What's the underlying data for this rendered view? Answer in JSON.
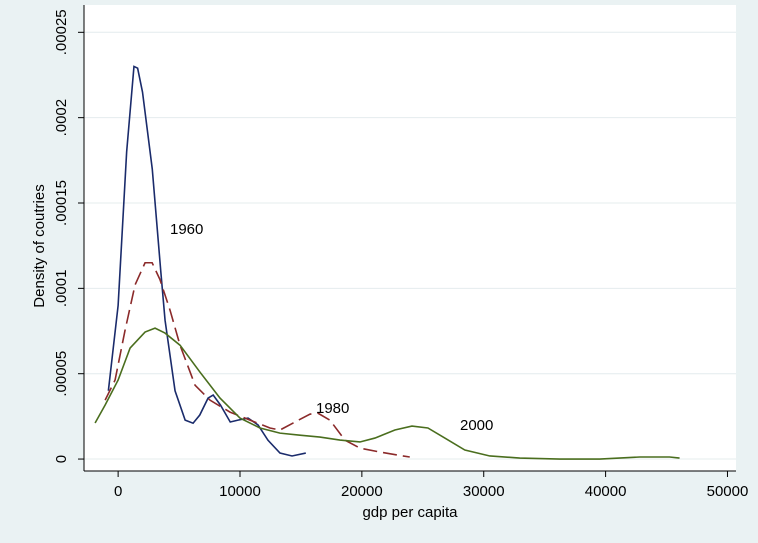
{
  "chart_data": {
    "type": "line",
    "x_label": "gdp per capita",
    "y_label": "Density of coutries",
    "xlim": [
      -2800,
      50700
    ],
    "ylim": [
      -7e-06,
      0.000266
    ],
    "xticks": [
      0,
      10000,
      20000,
      30000,
      40000,
      50000
    ],
    "yticks": [
      0,
      {
        "value": 5e-05,
        "label": ".00005"
      },
      {
        "value": 0.0001,
        "label": ".0001"
      },
      {
        "value": 0.00015,
        "label": ".00015"
      },
      {
        "value": 0.0002,
        "label": ".0002"
      },
      {
        "value": 0.00025,
        "label": ".00025"
      }
    ],
    "grid": true,
    "series": [
      {
        "name": "1960",
        "color": "#1a2b6b",
        "dash": "solid",
        "x": [
          -800,
          0,
          700,
          1300,
          1600,
          2000,
          2800,
          3500,
          3850,
          4670,
          5500,
          6150,
          6700,
          7380,
          7800,
          8400,
          9200,
          9840,
          10660,
          11480,
          12300,
          13280,
          14270,
          15400
        ],
        "values": [
          4e-05,
          9e-05,
          0.00018,
          0.00023,
          0.000229,
          0.000215,
          0.00017,
          0.00011,
          8.14e-05,
          4e-05,
          2.28e-05,
          2.1e-05,
          2.58e-05,
          3.57e-05,
          3.75e-05,
          3.16e-05,
          2.17e-05,
          2.28e-05,
          2.4e-05,
          2e-05,
          1.1e-05,
          3.5e-06,
          1.8e-06,
          3.5e-06
        ]
      },
      {
        "name": "1980",
        "color": "#8b2a2a",
        "dash": "dashed",
        "x": [
          -1066,
          -250,
          570,
          1390,
          2210,
          2790,
          3440,
          4260,
          5080,
          6310,
          7540,
          9180,
          10820,
          12460,
          13280,
          14510,
          15740,
          16390,
          17380,
          18610,
          19840,
          21480,
          22950,
          23930
        ],
        "values": [
          3.45e-05,
          4.63e-05,
          7.55e-05,
          0.000102,
          0.000115,
          0.000115,
          0.000105,
          8.72e-05,
          6.67e-05,
          4.33e-05,
          3.45e-05,
          2.75e-05,
          2.28e-05,
          1.82e-05,
          1.7e-05,
          2.17e-05,
          2.63e-05,
          2.69e-05,
          2.28e-05,
          1.11e-05,
          6.4e-06,
          4.1e-06,
          2.3e-06,
          1.2e-06
        ]
      },
      {
        "name": "2000",
        "color": "#4a6e1e",
        "dash": "solid",
        "x": [
          -1890,
          -1070,
          0,
          980,
          2210,
          3030,
          3850,
          5080,
          6720,
          8360,
          10000,
          11640,
          13280,
          14920,
          16560,
          18200,
          19840,
          21070,
          22710,
          24110,
          25420,
          26810,
          28450,
          30500,
          32960,
          36240,
          39520,
          42800,
          45250,
          46070
        ],
        "values": [
          2.11e-05,
          3.16e-05,
          4.63e-05,
          6.5e-05,
          7.44e-05,
          7.67e-05,
          7.38e-05,
          6.67e-05,
          5.09e-05,
          3.57e-05,
          2.4e-05,
          1.82e-05,
          1.52e-05,
          1.4e-05,
          1.29e-05,
          1.11e-05,
          1e-05,
          1.23e-05,
          1.7e-05,
          1.93e-05,
          1.82e-05,
          1.23e-05,
          5.3e-06,
          1.8e-06,
          6e-07,
          0,
          0,
          1.2e-06,
          1.2e-06,
          6e-07
        ]
      }
    ]
  }
}
